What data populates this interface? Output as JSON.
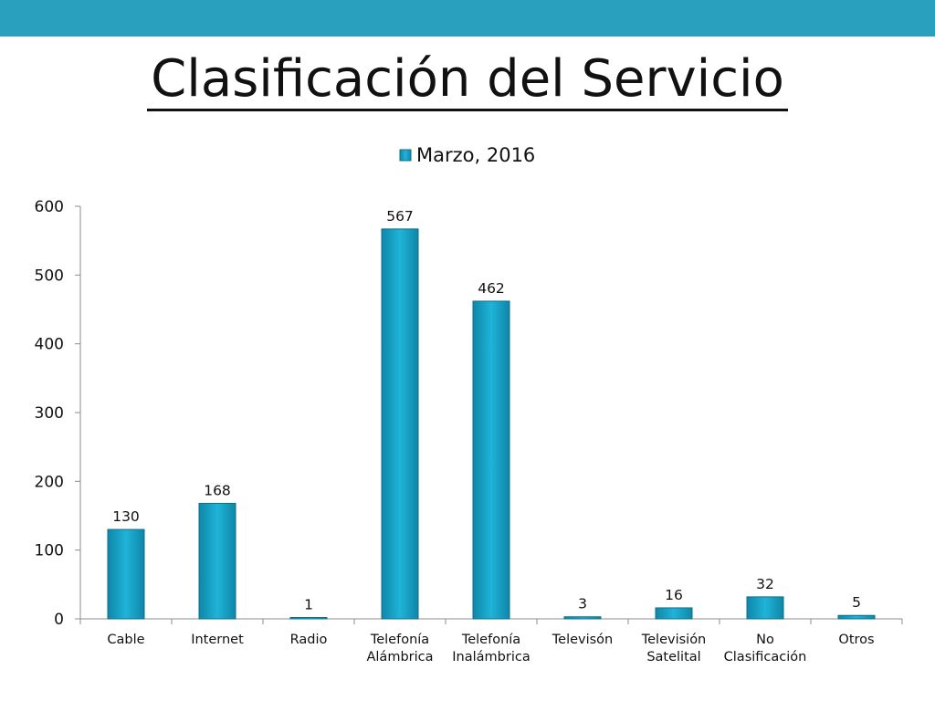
{
  "slide": {
    "title": "Clasificación del Servicio"
  },
  "colors": {
    "topbar": "#2aa0bf",
    "bar_fill": "#1aa7cc",
    "bar_edge": "#0e6f8c"
  },
  "chart_data": {
    "type": "bar",
    "categories": [
      [
        "Cable"
      ],
      [
        "Internet"
      ],
      [
        "Radio"
      ],
      [
        "Telefonía",
        "Alámbrica"
      ],
      [
        "Telefonía",
        "Inalámbrica"
      ],
      [
        "Televisón"
      ],
      [
        "Televisión",
        "Satelital"
      ],
      [
        "No",
        "Clasificación"
      ],
      [
        "Otros"
      ]
    ],
    "series": [
      {
        "name": "Marzo, 2016",
        "values": [
          130,
          168,
          1,
          567,
          462,
          3,
          16,
          32,
          5
        ]
      }
    ],
    "ylim": [
      0,
      600
    ],
    "yticks": [
      0,
      100,
      200,
      300,
      400,
      500,
      600
    ],
    "grid": false,
    "legend_position": "top",
    "data_labels": true
  }
}
